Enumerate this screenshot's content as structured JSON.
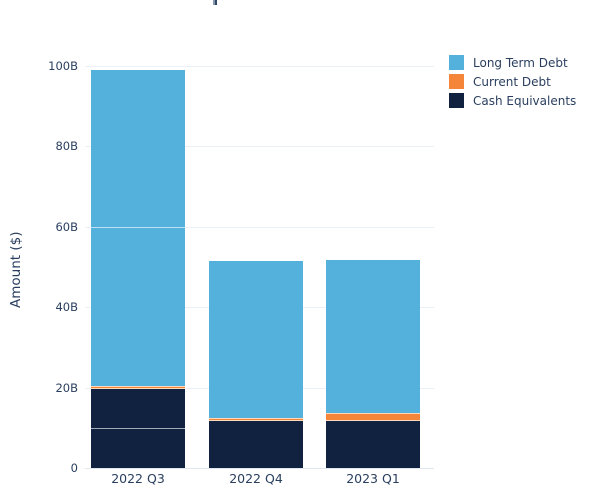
{
  "clipped_title_fragment": "p",
  "colors": {
    "background": "#ffffff",
    "text": "#2a3f5f",
    "gridline": "#ebf0f8",
    "axis_line": "#e2e8f0",
    "long_term_debt": "#54b1dc",
    "current_debt": "#f58538",
    "cash_equivalents": "#112240",
    "thin_segment_edge": "#fbd9ba",
    "in_bar_divider": "rgba(255,255,255,0.62)"
  },
  "chart_data": {
    "type": "bar",
    "stacked": true,
    "title": "",
    "ylabel": "Amount ($)",
    "xlabel": "",
    "ylim": [
      0,
      100
    ],
    "grid": true,
    "legend_position": "top-right",
    "categories": [
      "2022 Q3",
      "2022 Q4",
      "2023 Q1"
    ],
    "stack_order_bottom_up": [
      "Cash Equivalents",
      "Current Debt",
      "Long Term Debt"
    ],
    "series": [
      {
        "name": "Long Term Debt",
        "color": "#54b1dc",
        "values": [
          78.5,
          39.0,
          38.1
        ]
      },
      {
        "name": "Current Debt",
        "color": "#f58538",
        "values": [
          0.9,
          0.8,
          1.8
        ]
      },
      {
        "name": "Cash Equivalents",
        "color": "#112240",
        "values": [
          19.6,
          11.7,
          11.8
        ]
      }
    ],
    "yticks": [
      {
        "label": "0",
        "value": 0
      },
      {
        "label": "20B",
        "value": 20
      },
      {
        "label": "40B",
        "value": 40
      },
      {
        "label": "60B",
        "value": 60
      },
      {
        "label": "80B",
        "value": 80
      },
      {
        "label": "100B",
        "value": 100
      }
    ],
    "white_dividers": [
      {
        "category_index": 0,
        "series": "Cash Equivalents",
        "value": 9.6
      },
      {
        "category_index": 0,
        "series": "Long Term Debt",
        "value": 59.7
      }
    ]
  },
  "legend": {
    "items": [
      {
        "label": "Long Term Debt",
        "color": "#54b1dc"
      },
      {
        "label": "Current Debt",
        "color": "#f58538"
      },
      {
        "label": "Cash Equivalents",
        "color": "#112240"
      }
    ]
  }
}
